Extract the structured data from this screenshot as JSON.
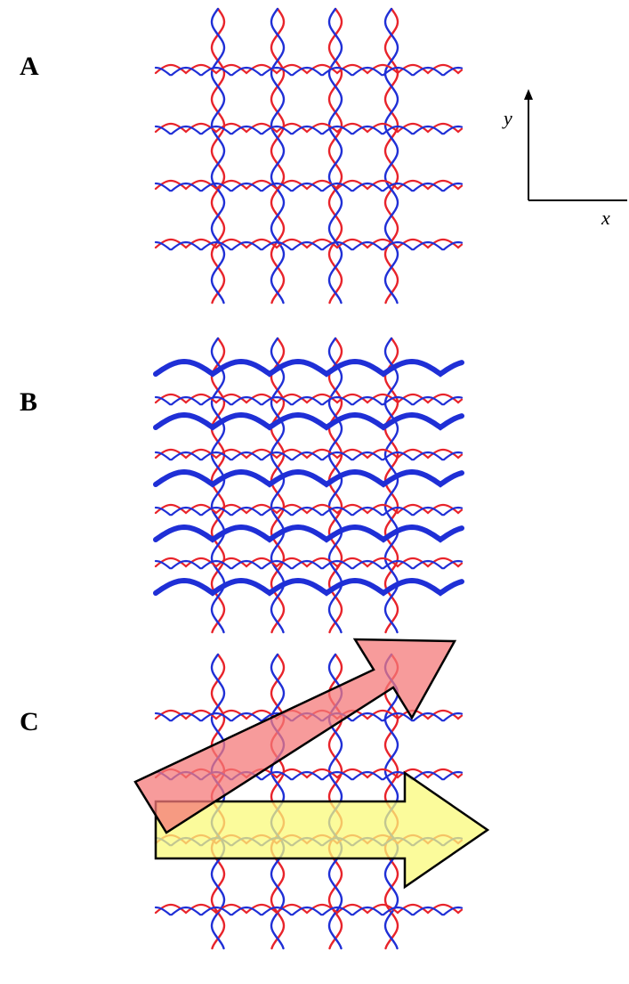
{
  "panels": [
    {
      "label": "A"
    },
    {
      "label": "B"
    },
    {
      "label": "C"
    }
  ],
  "axes": {
    "y": "y",
    "x": "x"
  },
  "colors": {
    "strand_red": "#e8232a",
    "strand_blue": "#1f2fd6",
    "arrow_red_fill": "#f47a7a",
    "arrow_yellow_fill": "#fafa7a",
    "arrow_stroke": "#000000"
  }
}
